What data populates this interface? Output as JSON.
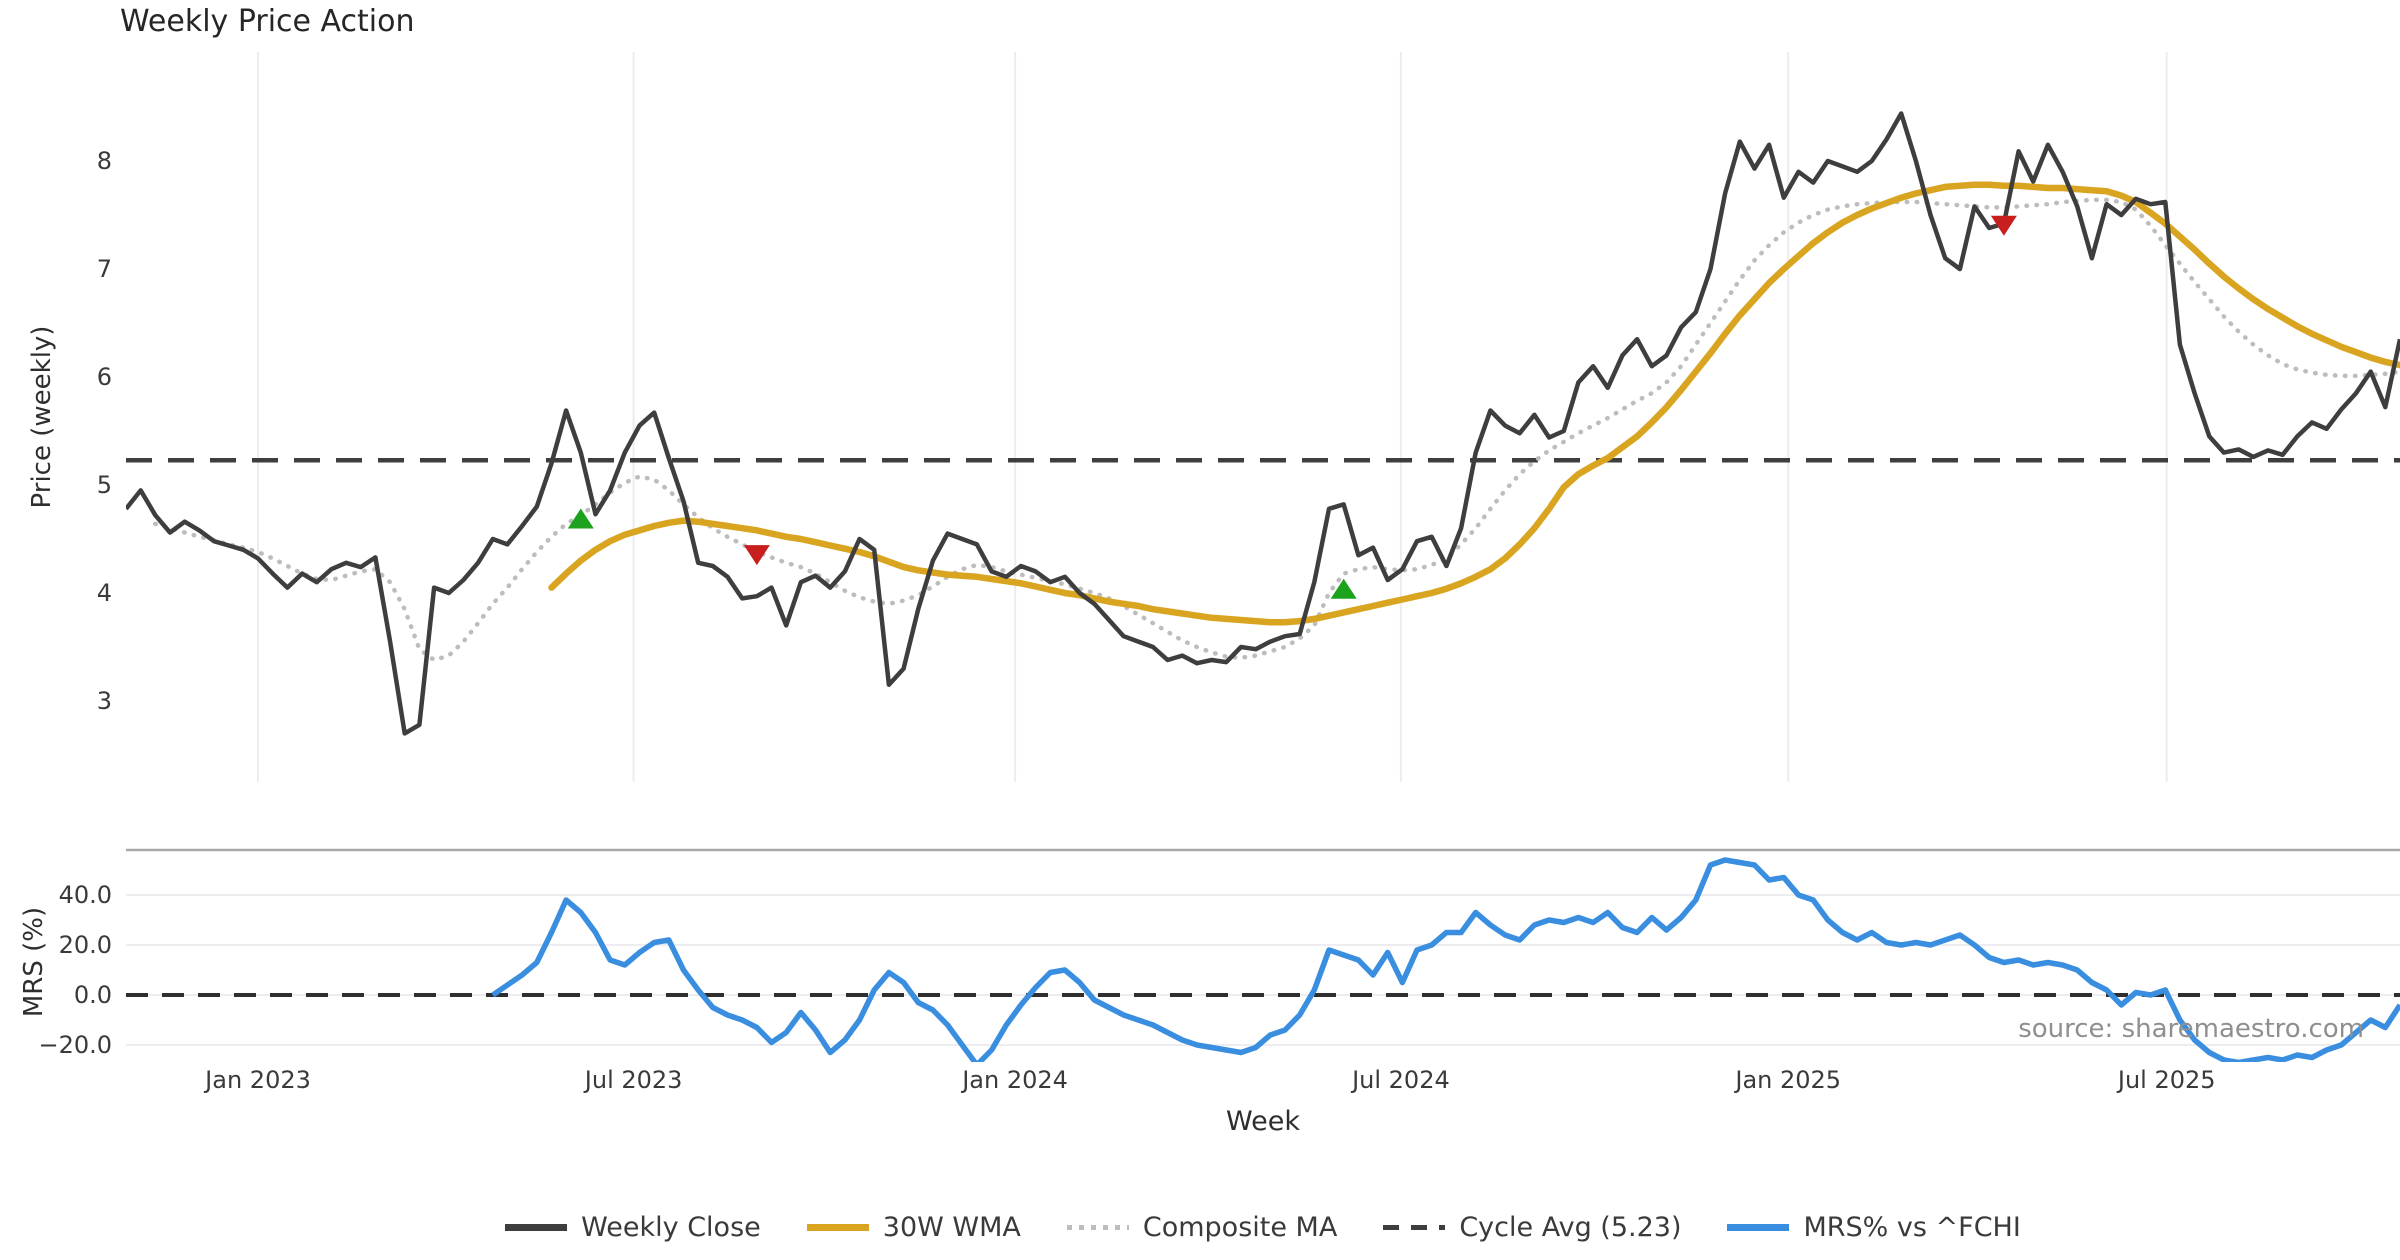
{
  "title": "Weekly Price Action",
  "source_note": "source: sharemaestro.com",
  "colors": {
    "close": "#3e3e3e",
    "wma": "#d9a521",
    "composite": "#bdbdbd",
    "cycle": "#3e3e3e",
    "mrs": "#3a8ee0",
    "buy": "#1da21d",
    "sell": "#c81e1e",
    "grid": "#ececf1",
    "separator": "#a8a8a8",
    "zero_dash": "#2f2f2f"
  },
  "chart_data": [
    {
      "type": "line",
      "panel": "price",
      "title": "Weekly Price Action",
      "ylabel": "Price (weekly)",
      "xlabel": "Week",
      "ylim": [
        2.25,
        8.95
      ],
      "grid": "vertical-only",
      "legend_position": "bottom-center",
      "yticks": [
        {
          "label": "8",
          "v": 8
        },
        {
          "label": "7",
          "v": 7
        },
        {
          "label": "6",
          "v": 6
        },
        {
          "label": "5",
          "v": 5
        },
        {
          "label": "4",
          "v": 4
        },
        {
          "label": "3",
          "v": 3
        }
      ],
      "xticks": [
        {
          "label": "Jan 2023",
          "week": 9.0
        },
        {
          "label": "Jul 2023",
          "week": 34.6
        },
        {
          "label": "Jan 2024",
          "week": 60.6
        },
        {
          "label": "Jul 2024",
          "week": 86.9
        },
        {
          "label": "Jan 2025",
          "week": 113.3
        },
        {
          "label": "Jul 2025",
          "week": 139.1
        }
      ],
      "series": [
        {
          "name": "Weekly Close",
          "style": "solid",
          "color_key": "close",
          "start_week": 0,
          "values": [
            4.78,
            4.95,
            4.72,
            4.56,
            4.66,
            4.58,
            4.48,
            4.44,
            4.4,
            4.32,
            4.18,
            4.05,
            4.18,
            4.1,
            4.22,
            4.28,
            4.24,
            4.33,
            3.55,
            2.7,
            2.78,
            4.05,
            4.0,
            4.12,
            4.28,
            4.5,
            4.45,
            4.62,
            4.8,
            5.2,
            5.69,
            5.3,
            4.73,
            4.95,
            5.3,
            5.55,
            5.67,
            5.25,
            4.85,
            4.28,
            4.25,
            4.15,
            3.95,
            3.97,
            4.05,
            3.7,
            4.1,
            4.16,
            4.05,
            4.2,
            4.5,
            4.4,
            3.15,
            3.3,
            3.85,
            4.3,
            4.55,
            4.5,
            4.45,
            4.2,
            4.15,
            4.25,
            4.2,
            4.1,
            4.15,
            4.0,
            3.9,
            3.75,
            3.6,
            3.55,
            3.5,
            3.38,
            3.42,
            3.35,
            3.38,
            3.36,
            3.5,
            3.48,
            3.55,
            3.6,
            3.62,
            4.1,
            4.78,
            4.82,
            4.35,
            4.42,
            4.12,
            4.22,
            4.48,
            4.52,
            4.25,
            4.6,
            5.3,
            5.69,
            5.55,
            5.48,
            5.65,
            5.44,
            5.5,
            5.95,
            6.1,
            5.9,
            6.2,
            6.35,
            6.1,
            6.2,
            6.46,
            6.6,
            7.0,
            7.7,
            8.18,
            7.93,
            8.15,
            7.66,
            7.9,
            7.8,
            8.0,
            7.95,
            7.9,
            8.0,
            8.2,
            8.44,
            8.0,
            7.5,
            7.1,
            7.0,
            7.58,
            7.38,
            7.42,
            8.09,
            7.81,
            8.15,
            7.9,
            7.58,
            7.1,
            7.6,
            7.5,
            7.65,
            7.6,
            7.62,
            6.3,
            5.85,
            5.45,
            5.3,
            5.33,
            5.26,
            5.32,
            5.28,
            5.45,
            5.58,
            5.52,
            5.7,
            5.85,
            6.05,
            5.72,
            6.35
          ]
        },
        {
          "name": "30W WMA",
          "style": "solid",
          "color_key": "wma",
          "start_week": 29,
          "values": [
            4.05,
            4.18,
            4.3,
            4.4,
            4.48,
            4.54,
            4.58,
            4.62,
            4.65,
            4.67,
            4.66,
            4.64,
            4.62,
            4.6,
            4.58,
            4.55,
            4.52,
            4.5,
            4.47,
            4.44,
            4.41,
            4.38,
            4.34,
            4.29,
            4.24,
            4.21,
            4.19,
            4.17,
            4.16,
            4.15,
            4.13,
            4.11,
            4.09,
            4.06,
            4.03,
            4.0,
            3.98,
            3.95,
            3.92,
            3.9,
            3.88,
            3.85,
            3.83,
            3.81,
            3.79,
            3.77,
            3.76,
            3.75,
            3.74,
            3.73,
            3.73,
            3.74,
            3.76,
            3.79,
            3.82,
            3.85,
            3.88,
            3.91,
            3.94,
            3.97,
            4.0,
            4.04,
            4.09,
            4.15,
            4.22,
            4.32,
            4.45,
            4.6,
            4.78,
            4.98,
            5.1,
            5.18,
            5.25,
            5.35,
            5.45,
            5.58,
            5.72,
            5.88,
            6.05,
            6.22,
            6.4,
            6.57,
            6.72,
            6.87,
            7.0,
            7.12,
            7.24,
            7.34,
            7.43,
            7.5,
            7.56,
            7.61,
            7.66,
            7.7,
            7.73,
            7.76,
            7.77,
            7.78,
            7.78,
            7.77,
            7.77,
            7.76,
            7.75,
            7.75,
            7.74,
            7.73,
            7.72,
            7.68,
            7.62,
            7.52,
            7.42,
            7.3,
            7.18,
            7.05,
            6.93,
            6.82,
            6.72,
            6.63,
            6.55,
            6.47,
            6.4,
            6.34,
            6.28,
            6.23,
            6.18,
            6.14,
            6.11
          ]
        },
        {
          "name": "Composite MA",
          "style": "dotted",
          "color_key": "composite",
          "start_week": 2,
          "values": [
            4.64,
            4.6,
            4.56,
            4.52,
            4.49,
            4.45,
            4.42,
            4.38,
            4.32,
            4.25,
            4.18,
            4.13,
            4.12,
            4.16,
            4.2,
            4.22,
            4.1,
            3.85,
            3.48,
            3.38,
            3.42,
            3.55,
            3.72,
            3.9,
            4.05,
            4.22,
            4.38,
            4.52,
            4.64,
            4.72,
            4.82,
            4.93,
            5.02,
            5.08,
            5.05,
            4.95,
            4.82,
            4.7,
            4.6,
            4.52,
            4.45,
            4.38,
            4.33,
            4.28,
            4.24,
            4.18,
            4.1,
            4.02,
            3.96,
            3.92,
            3.9,
            3.93,
            3.98,
            4.06,
            4.15,
            4.22,
            4.26,
            4.24,
            4.2,
            4.17,
            4.14,
            4.11,
            4.08,
            4.04,
            4.0,
            3.95,
            3.88,
            3.8,
            3.72,
            3.64,
            3.56,
            3.5,
            3.45,
            3.41,
            3.4,
            3.42,
            3.46,
            3.5,
            3.58,
            3.7,
            4.0,
            4.18,
            4.22,
            4.24,
            4.22,
            4.21,
            4.22,
            4.26,
            4.32,
            4.45,
            4.6,
            4.78,
            4.95,
            5.1,
            5.22,
            5.32,
            5.4,
            5.48,
            5.55,
            5.62,
            5.7,
            5.78,
            5.85,
            5.95,
            6.1,
            6.3,
            6.5,
            6.7,
            6.9,
            7.08,
            7.22,
            7.34,
            7.43,
            7.5,
            7.55,
            7.58,
            7.6,
            7.61,
            7.62,
            7.62,
            7.62,
            7.61,
            7.6,
            7.59,
            7.58,
            7.57,
            7.57,
            7.58,
            7.59,
            7.6,
            7.62,
            7.63,
            7.64,
            7.64,
            7.62,
            7.55,
            7.4,
            7.22,
            7.05,
            6.88,
            6.72,
            6.56,
            6.42,
            6.3,
            6.2,
            6.12,
            6.07,
            6.04,
            6.02,
            6.01,
            6.01,
            6.02,
            6.03,
            6.05
          ]
        },
        {
          "name": "Cycle Avg (5.23)",
          "style": "dashed",
          "color_key": "cycle",
          "value": 5.23
        }
      ],
      "markers": {
        "buy_signals": [
          {
            "week": 31,
            "price": 4.68
          },
          {
            "week": 83,
            "price": 4.03
          }
        ],
        "sell_signals": [
          {
            "week": 43,
            "price": 4.36
          },
          {
            "week": 128,
            "price": 7.41
          }
        ]
      }
    },
    {
      "type": "line",
      "panel": "mrs",
      "ylabel": "MRS (%)",
      "ylim": [
        -27.5,
        58
      ],
      "grid": "horizontal-only",
      "zero_line": "dashed",
      "yticks": [
        {
          "label": "40.0",
          "v": 40
        },
        {
          "label": "20.0",
          "v": 20
        },
        {
          "label": "0.0",
          "v": 0
        },
        {
          "label": "−20.0",
          "v": -20
        }
      ],
      "series": [
        {
          "name": "MRS% vs ^FCHI",
          "style": "solid",
          "color_key": "mrs",
          "start_week": 25,
          "values": [
            0,
            4,
            8,
            13,
            25,
            38,
            33,
            25,
            14,
            12,
            17,
            21,
            22,
            10,
            2,
            -5,
            -8,
            -10,
            -13,
            -19,
            -15,
            -7,
            -14,
            -23,
            -18,
            -10,
            2,
            9,
            5,
            -3,
            -6,
            -12,
            -20,
            -28,
            -22,
            -12,
            -4,
            3,
            9,
            10,
            5,
            -2,
            -5,
            -8,
            -10,
            -12,
            -15,
            -18,
            -20,
            -21,
            -22,
            -23,
            -21,
            -16,
            -14,
            -8,
            2,
            18,
            16,
            14,
            8,
            17,
            5,
            18,
            20,
            25,
            25,
            33,
            28,
            24,
            22,
            28,
            30,
            29,
            31,
            29,
            33,
            27,
            25,
            31,
            26,
            31,
            38,
            52,
            54,
            53,
            52,
            46,
            47,
            40,
            38,
            30,
            25,
            22,
            25,
            21,
            20,
            21,
            20,
            22,
            24,
            20,
            15,
            13,
            14,
            12,
            13,
            12,
            10,
            5,
            2,
            -4,
            1,
            0,
            2,
            -10,
            -18,
            -23,
            -26,
            -27,
            -26,
            -25,
            -26,
            -24,
            -25,
            -22,
            -20,
            -15,
            -10,
            -13,
            -4
          ]
        }
      ]
    }
  ],
  "legend": [
    {
      "label": "Weekly Close",
      "swatch": "solid",
      "color_key": "close"
    },
    {
      "label": "30W WMA",
      "swatch": "solid",
      "color_key": "wma"
    },
    {
      "label": "Composite MA",
      "swatch": "dotted",
      "color_key": "composite"
    },
    {
      "label": "Cycle Avg (5.23)",
      "swatch": "dashed",
      "color_key": "cycle"
    },
    {
      "label": "MRS% vs ^FCHI",
      "swatch": "solid",
      "color_key": "mrs"
    }
  ]
}
